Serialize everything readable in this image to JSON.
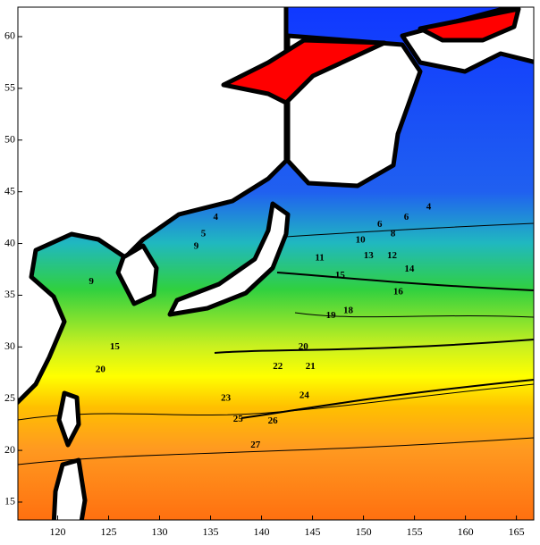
{
  "chart_data": {
    "type": "contour",
    "xlim": [
      116.1,
      166.7
    ],
    "ylim": [
      13.27,
      62.85
    ],
    "xticks": [
      120,
      125,
      130,
      135,
      140,
      145,
      150,
      155,
      160,
      165
    ],
    "yticks": [
      15,
      20,
      25,
      30,
      35,
      40,
      45,
      50,
      55,
      60
    ],
    "contour_labels": [
      {
        "value": 4,
        "lon": 135.5,
        "lat": 42.5
      },
      {
        "value": 5,
        "lon": 134.3,
        "lat": 40.9
      },
      {
        "value": 9,
        "lon": 133.6,
        "lat": 39.7
      },
      {
        "value": 9,
        "lon": 123.3,
        "lat": 36.3
      },
      {
        "value": 4,
        "lon": 156.4,
        "lat": 43.5
      },
      {
        "value": 6,
        "lon": 154.2,
        "lat": 42.5
      },
      {
        "value": 6,
        "lon": 151.6,
        "lat": 41.8
      },
      {
        "value": 8,
        "lon": 152.9,
        "lat": 40.9
      },
      {
        "value": 10,
        "lon": 149.7,
        "lat": 40.3
      },
      {
        "value": 11,
        "lon": 145.7,
        "lat": 38.6
      },
      {
        "value": 13,
        "lon": 150.5,
        "lat": 38.8
      },
      {
        "value": 12,
        "lon": 152.8,
        "lat": 38.8
      },
      {
        "value": 14,
        "lon": 154.5,
        "lat": 37.5
      },
      {
        "value": 15,
        "lon": 147.7,
        "lat": 36.9
      },
      {
        "value": 16,
        "lon": 153.4,
        "lat": 35.3
      },
      {
        "value": 18,
        "lon": 148.5,
        "lat": 33.5
      },
      {
        "value": 19,
        "lon": 146.8,
        "lat": 33.0
      },
      {
        "value": 20,
        "lon": 144.1,
        "lat": 30.0
      },
      {
        "value": 21,
        "lon": 144.8,
        "lat": 28.1
      },
      {
        "value": 22,
        "lon": 141.6,
        "lat": 28.1
      },
      {
        "value": 23,
        "lon": 136.5,
        "lat": 25.0
      },
      {
        "value": 24,
        "lon": 144.2,
        "lat": 25.3
      },
      {
        "value": 25,
        "lon": 137.7,
        "lat": 23.0
      },
      {
        "value": 26,
        "lon": 141.1,
        "lat": 22.8
      },
      {
        "value": 27,
        "lon": 139.4,
        "lat": 20.5
      },
      {
        "value": 15,
        "lon": 125.6,
        "lat": 30.0
      },
      {
        "value": 20,
        "lon": 124.2,
        "lat": 27.8
      }
    ]
  }
}
